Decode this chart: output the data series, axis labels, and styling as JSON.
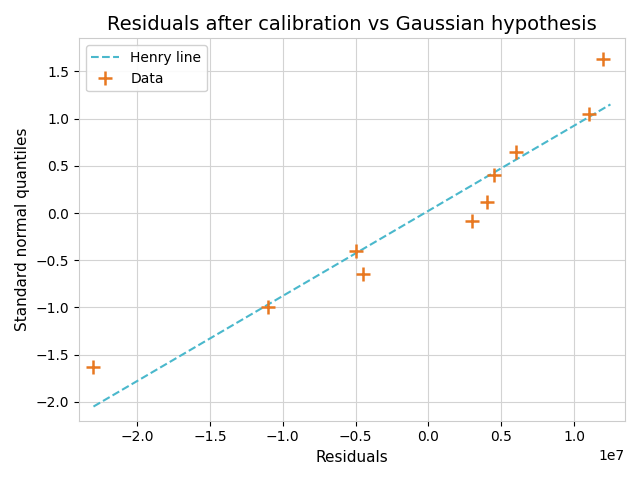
{
  "title": "Residuals after calibration vs Gaussian hypothesis",
  "xlabel": "Residuals",
  "ylabel": "Standard normal quantiles",
  "data_x": [
    -23000000.0,
    -11000000.0,
    -5000000.0,
    -4500000.0,
    3000000.0,
    4000000.0,
    4500000.0,
    6000000.0,
    11000000.0,
    12000000.0
  ],
  "data_y": [
    -1.63,
    -1.0,
    -0.4,
    -0.65,
    -0.08,
    0.12,
    0.4,
    0.65,
    1.05,
    1.63
  ],
  "line_x": [
    -23000000.0,
    12500000.0
  ],
  "line_y": [
    -2.05,
    1.15
  ],
  "line_label": "Henry line",
  "data_label": "Data",
  "line_color": "#4ab8cc",
  "data_color": "#e87820",
  "marker": "+",
  "marker_size": 10,
  "marker_linewidth": 1.8,
  "xlim": [
    -24000000.0,
    13500000.0
  ],
  "ylim": [
    -2.2,
    1.85
  ],
  "xticks": [
    -20000000.0,
    -15000000.0,
    -10000000.0,
    -5000000.0,
    0.0,
    5000000.0,
    10000000.0
  ],
  "grid": true,
  "legend_loc": "upper left",
  "title_fontsize": 14,
  "axis_label_fontsize": 11,
  "bg_color": "#ffffff",
  "grid_color": "#d3d3d3"
}
